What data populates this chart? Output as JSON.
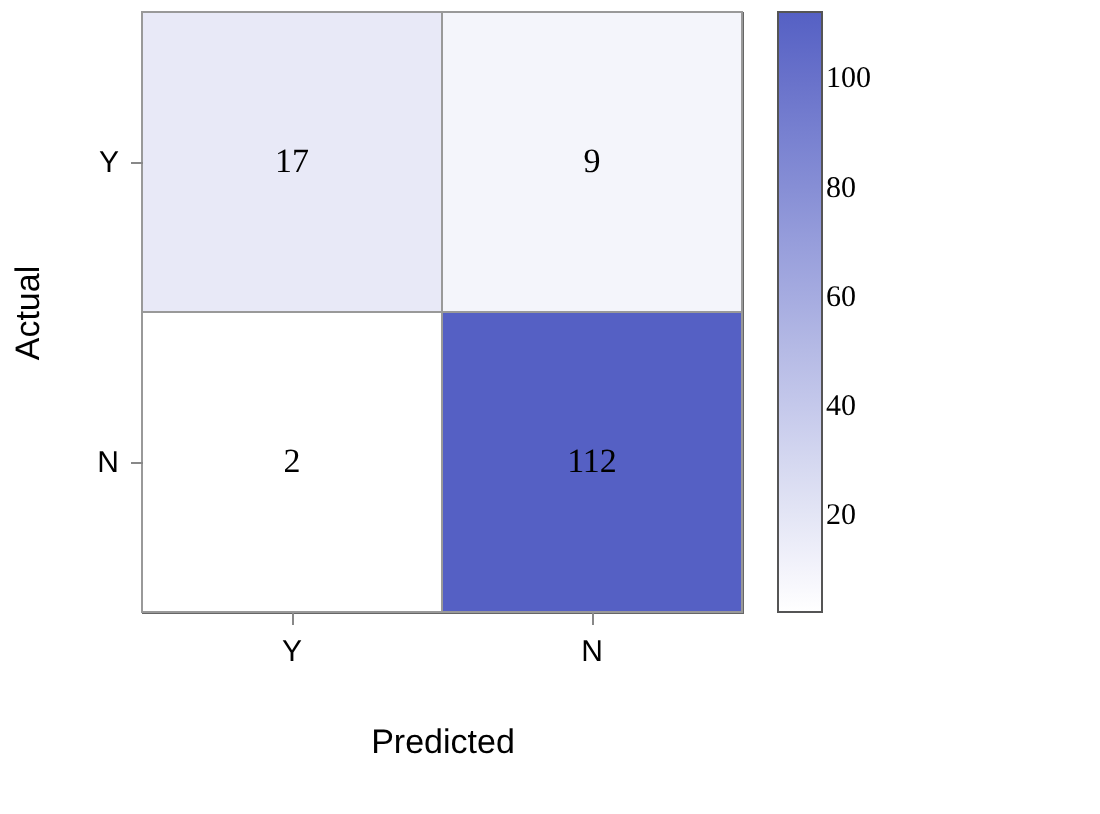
{
  "chart_data": {
    "type": "heatmap",
    "xlabel": "Predicted",
    "ylabel": "Actual",
    "categories": [
      "Y",
      "N"
    ],
    "y_categories": [
      "Y",
      "N"
    ],
    "cells": [
      [
        17,
        9
      ],
      [
        2,
        112
      ]
    ],
    "data_labels": true,
    "clim": [
      2,
      112
    ],
    "cticks": [
      20,
      40,
      60,
      80,
      100
    ],
    "colors": [
      "#ffffff",
      "#5560c4"
    ]
  }
}
